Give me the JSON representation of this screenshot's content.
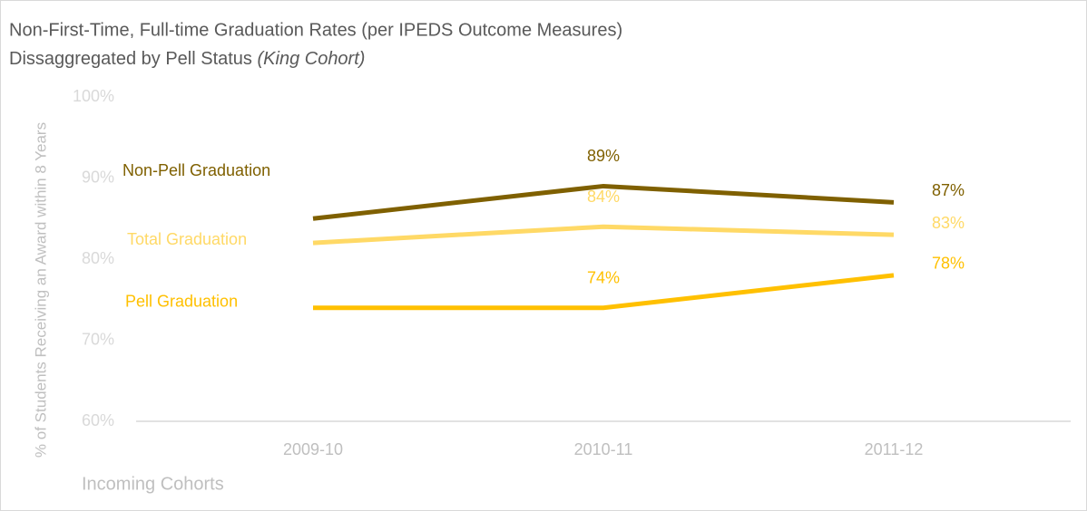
{
  "chart_data": {
    "type": "line",
    "title": "Non-First-Time, Full-time Graduation Rates (per IPEDS Outcome Measures)",
    "subtitle": "Dissaggregated by Pell Status",
    "subtitle_note": "(King Cohort)",
    "y_label": "% of Students Receiving an Award within 8 Years",
    "x_label": "Incoming Cohorts",
    "categories": [
      "2009-10",
      "2010-11",
      "2011-12"
    ],
    "series": [
      {
        "name": "Non-Pell Graduation",
        "color": "#7f6000",
        "values": [
          85,
          89,
          87
        ],
        "value_labels": [
          null,
          "89%",
          "87%"
        ]
      },
      {
        "name": "Total Graduation",
        "color": "#ffd966",
        "values": [
          82,
          84,
          83
        ],
        "value_labels": [
          null,
          "84%",
          "83%"
        ]
      },
      {
        "name": "Pell Graduation",
        "color": "#ffc000",
        "values": [
          74,
          74,
          78
        ],
        "value_labels": [
          null,
          "74%",
          "78%"
        ]
      }
    ],
    "ylim": [
      60,
      100
    ],
    "yticks": [
      {
        "value": 60,
        "label": "60%"
      },
      {
        "value": 70,
        "label": "70%"
      },
      {
        "value": 80,
        "label": "80%"
      },
      {
        "value": 90,
        "label": "90%"
      },
      {
        "value": 100,
        "label": "100%"
      }
    ],
    "grid": false
  }
}
